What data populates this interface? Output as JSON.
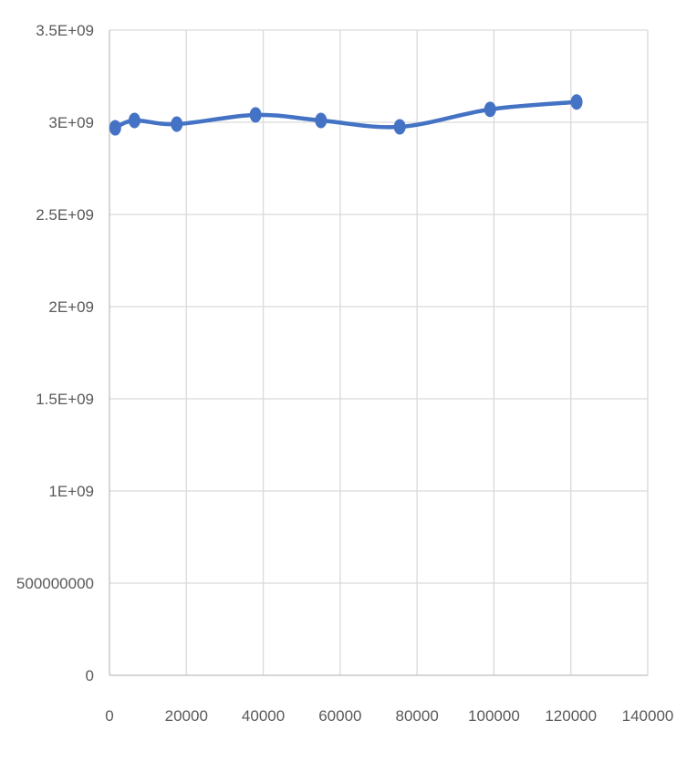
{
  "chart_data": {
    "type": "line",
    "title": "",
    "xlabel": "",
    "ylabel": "",
    "xlim": [
      0,
      140000
    ],
    "ylim": [
      0,
      3500000000
    ],
    "x_ticks": [
      0,
      20000,
      40000,
      60000,
      80000,
      100000,
      120000,
      140000
    ],
    "x_tick_labels": [
      "0",
      "20000",
      "40000",
      "60000",
      "80000",
      "100000",
      "120000",
      "140000"
    ],
    "y_ticks": [
      0,
      500000000,
      1000000000,
      1500000000,
      2000000000,
      2500000000,
      3000000000,
      3500000000
    ],
    "y_tick_labels": [
      "0",
      "500000000",
      "1E+09",
      "1.5E+09",
      "2E+09",
      "2.5E+09",
      "3E+09",
      "3.5E+09"
    ],
    "grid": true,
    "legend": "none",
    "series": [
      {
        "x": [
          1500,
          6500,
          17500,
          38000,
          55000,
          75500,
          99000,
          121500
        ],
        "y": [
          2970000000,
          3010000000,
          2990000000,
          3040000000,
          3010000000,
          2975000000,
          3070000000,
          3110000000
        ],
        "color": "#4472C4",
        "smooth": true,
        "markers": true
      }
    ],
    "colors": {
      "gridline": "#d9d9d9",
      "axis": "#bfbfbf",
      "series": "#4472C4",
      "tick_text": "#595959"
    }
  }
}
